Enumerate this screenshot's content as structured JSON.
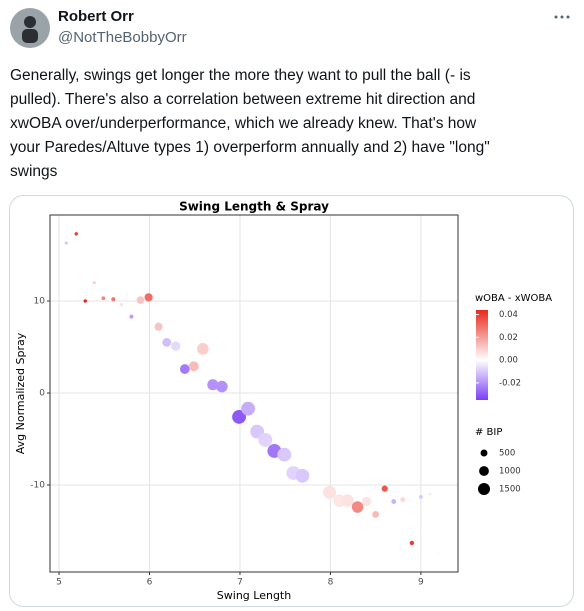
{
  "tweet": {
    "name": "Robert Orr",
    "handle": "@NotTheBobbyOrr",
    "text_lines": [
      "Generally, swings get longer the more they want to pull the ball (- is",
      "pulled). There's also a correlation between extreme hit direction and",
      "xwOBA over/underperformance, which we already knew. That's how",
      "your Paredes/Altuve types 1) overperform annually and 2) have \"long\"",
      "swings"
    ]
  },
  "chart_data": {
    "type": "scatter",
    "title": "Swing Length & Spray",
    "x_label": "Swing Length",
    "y_label": "Avg Normalized Spray",
    "xlim": [
      4.9,
      9.41
    ],
    "xticks": [
      5,
      6,
      7,
      8,
      9
    ],
    "ylim": [
      -19.46,
      19.35
    ],
    "yticks": [
      -10,
      0,
      10
    ],
    "grid": true,
    "x": [
      5.08,
      5.19,
      5.29,
      5.39,
      5.49,
      5.6,
      5.69,
      5.8,
      5.9,
      5.99,
      6.1,
      6.19,
      6.29,
      6.39,
      6.49,
      6.59,
      6.7,
      6.8,
      6.99,
      7.09,
      7.19,
      7.28,
      7.38,
      7.49,
      7.59,
      7.69,
      7.99,
      8.1,
      8.19,
      8.3,
      8.4,
      8.5,
      8.6,
      8.7,
      8.8,
      8.9,
      9.0,
      9.1,
      9.2
    ],
    "y": [
      16.3,
      17.3,
      10.0,
      12.0,
      10.3,
      10.2,
      9.6,
      8.3,
      10.1,
      10.4,
      7.2,
      5.5,
      5.1,
      2.6,
      2.9,
      4.8,
      0.9,
      0.7,
      -2.6,
      -1.7,
      -4.2,
      -5.1,
      -6.3,
      -6.7,
      -8.7,
      -9.0,
      -10.8,
      -11.7,
      -11.7,
      -12.4,
      -11.8,
      -13.2,
      -10.4,
      -11.8,
      -11.6,
      -16.3,
      -11.3,
      -11.0,
      -17.5
    ],
    "color_values": [
      -0.01,
      0.04,
      0.044,
      0.012,
      0.025,
      0.028,
      0.006,
      -0.018,
      0.012,
      0.03,
      0.012,
      -0.012,
      -0.007,
      -0.024,
      0.014,
      0.01,
      -0.02,
      -0.02,
      -0.03,
      -0.015,
      -0.01,
      -0.008,
      -0.025,
      -0.01,
      -0.008,
      -0.01,
      0.006,
      0.005,
      0.006,
      0.024,
      0.006,
      0.014,
      0.035,
      -0.014,
      0.008,
      0.04,
      -0.01,
      -0.004,
      0.001
    ],
    "sizes": [
      120,
      120,
      120,
      80,
      150,
      180,
      150,
      160,
      600,
      700,
      700,
      800,
      900,
      1000,
      1000,
      1400,
      1300,
      1400,
      2000,
      2000,
      2000,
      2000,
      2000,
      2000,
      2000,
      2000,
      1800,
      1700,
      1600,
      1400,
      900,
      500,
      400,
      250,
      250,
      200,
      150,
      80,
      80
    ],
    "color_title": "wOBA - xWOBA",
    "colorlim": [
      -0.035,
      0.044
    ],
    "color_ticks": [
      0.04,
      0.02,
      {
        "value": 0,
        "label": "0.00"
      },
      -0.02
    ],
    "color_low": "#7b3ff5",
    "color_mid": "#ffffff",
    "color_high": "#e8291c",
    "size_title": "# BIP",
    "size_ticks": [
      500,
      1000,
      1500
    ]
  }
}
